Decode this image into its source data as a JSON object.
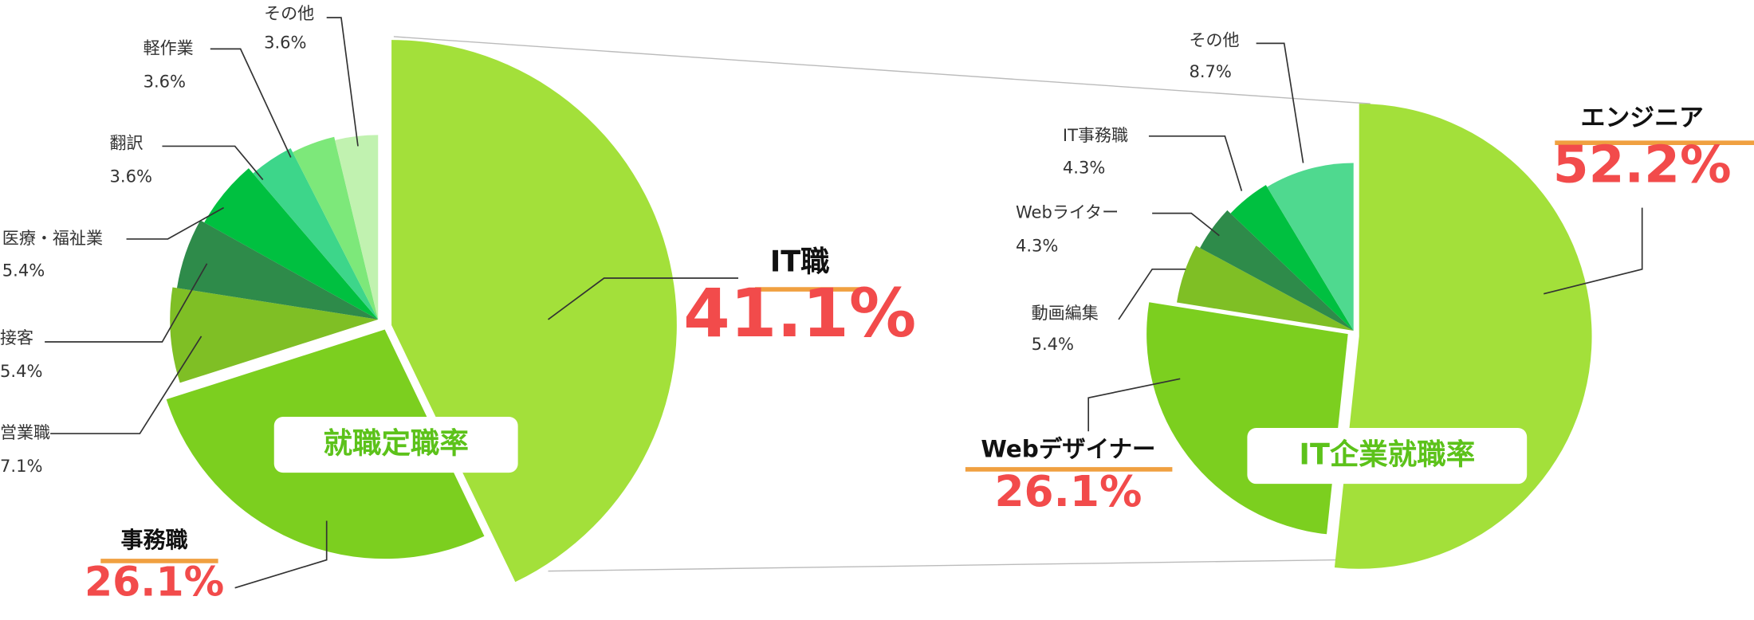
{
  "chart_data": [
    {
      "type": "pie",
      "title": "就職定職率",
      "categories": [
        "IT職",
        "事務職",
        "営業職",
        "接客",
        "医療・福祉業",
        "翻訳",
        "軽作業",
        "その他"
      ],
      "values": [
        41.1,
        26.1,
        7.1,
        5.4,
        5.4,
        3.6,
        3.6,
        3.6
      ],
      "value_labels": [
        "41.1%",
        "26.1%",
        "7.1%",
        "5.4%",
        "5.4%",
        "3.6%",
        "3.6%",
        "3.6%"
      ],
      "colors": [
        "#a3e03a",
        "#7ccf1f",
        "#7fbf25",
        "#2e8b4a",
        "#00c040",
        "#3dd68a",
        "#7de87a",
        "#c1f2b0"
      ]
    },
    {
      "type": "pie",
      "title": "IT企業就職率",
      "categories": [
        "エンジニア",
        "Webデザイナー",
        "動画編集",
        "Webライター",
        "IT事務職",
        "その他"
      ],
      "values": [
        52.2,
        26.1,
        5.4,
        4.3,
        4.3,
        8.7
      ],
      "value_labels": [
        "52.2%",
        "26.1%",
        "5.4%",
        "4.3%",
        "4.3%",
        "8.7%"
      ],
      "colors": [
        "#a3e03a",
        "#7ccf1f",
        "#7fbf25",
        "#2e8b4a",
        "#00c040",
        "#4fd98f"
      ]
    }
  ]
}
